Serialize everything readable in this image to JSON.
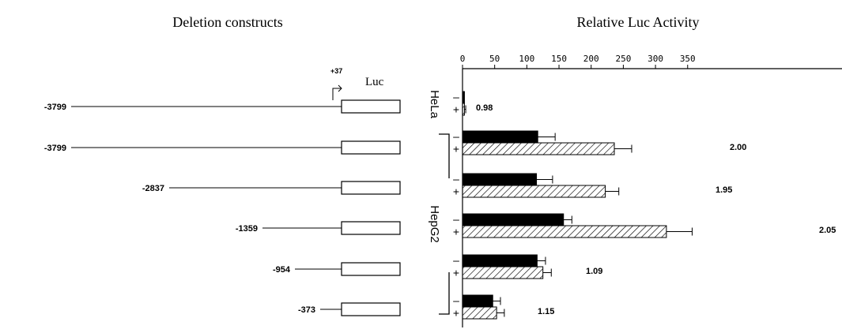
{
  "left_panel": {
    "title": "Deletion constructs",
    "tss_label": "+37",
    "reporter_label": "Luc",
    "constructs": [
      "-3799",
      "-3799",
      "-2837",
      "-1359",
      "-954",
      "-373"
    ]
  },
  "chart_data": {
    "type": "bar",
    "orientation": "horizontal",
    "title": "Relative Luc Activity",
    "xlabel": "",
    "ylabel": "",
    "xlim": [
      0,
      400
    ],
    "xticks": [
      0,
      50,
      100,
      150,
      200,
      250,
      300,
      350
    ],
    "grid": false,
    "legend": "none",
    "cell_groups": [
      {
        "name": "HeLa",
        "rows": [
          0
        ]
      },
      {
        "name": "HepG2",
        "rows": [
          1,
          2,
          3,
          4,
          5
        ]
      }
    ],
    "row_markers": [
      "–",
      "+"
    ],
    "series": [
      {
        "marker": "–",
        "fill": "solid",
        "values": [
          3,
          117,
          115,
          157,
          116,
          47
        ],
        "errors": [
          null,
          27,
          25,
          13,
          13,
          12
        ]
      },
      {
        "marker": "+",
        "fill": "hatched",
        "values": [
          3,
          236,
          222,
          317,
          125,
          53
        ],
        "errors": [
          2,
          27,
          21,
          40,
          13,
          12
        ]
      }
    ],
    "fold_labels": [
      "0.98",
      "2.00",
      "1.95",
      "2.05",
      "1.09",
      "1.15"
    ],
    "colors": {
      "solid": "#000000",
      "hatched_line": "#000000",
      "background": "#ffffff"
    }
  }
}
